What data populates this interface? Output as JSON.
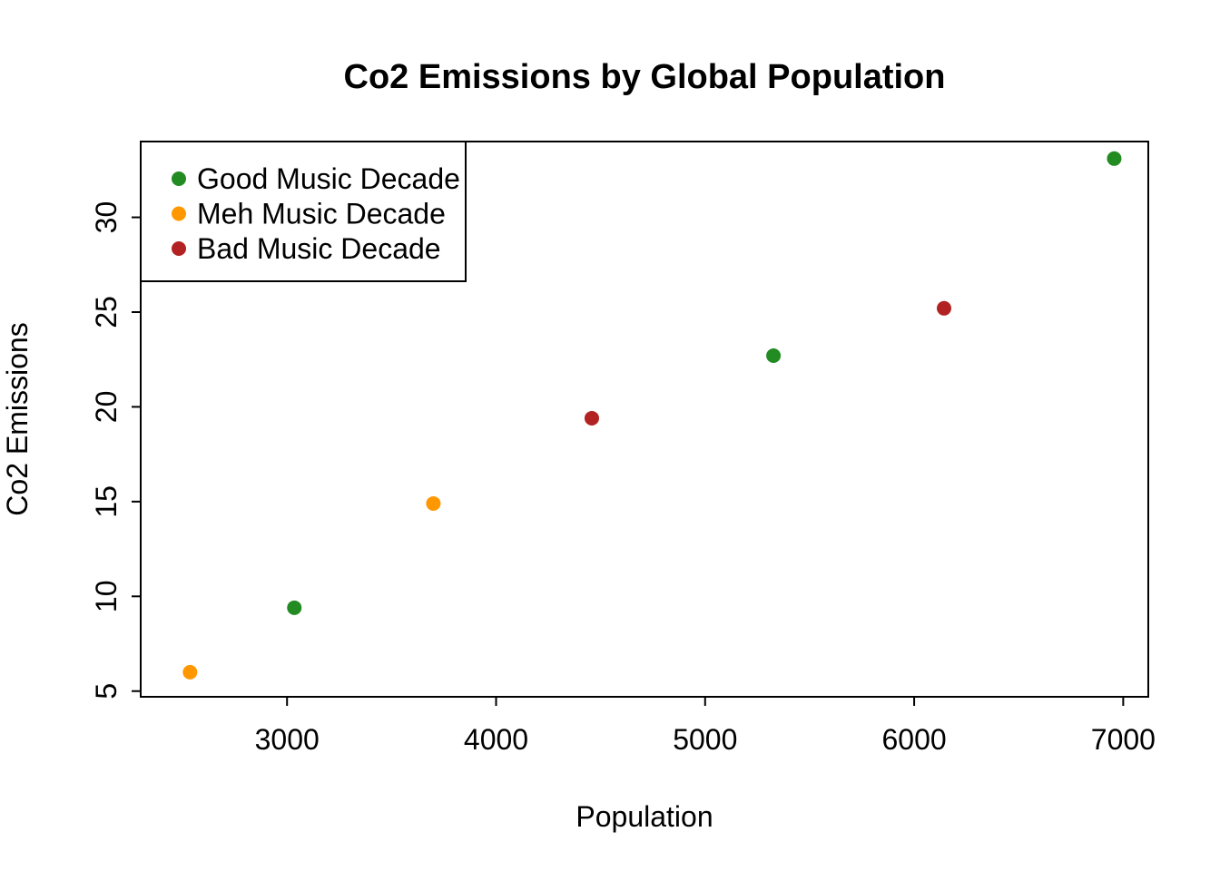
{
  "chart_data": {
    "type": "scatter",
    "title": "Co2 Emissions by Global Population",
    "xlabel": "Population",
    "ylabel": "Co2 Emissions",
    "xlim": [
      2300,
      7120
    ],
    "ylim": [
      4.7,
      34.0
    ],
    "x_ticks": [
      3000,
      4000,
      5000,
      6000,
      7000
    ],
    "y_ticks": [
      5,
      10,
      15,
      20,
      25,
      30
    ],
    "grid": false,
    "legend_position": "top-left",
    "point_radius": 8,
    "series": [
      {
        "name": "Good Music Decade",
        "color": "#228B22",
        "points": [
          {
            "x": 3035,
            "y": 9.4
          },
          {
            "x": 5327,
            "y": 22.7
          },
          {
            "x": 6957,
            "y": 33.1
          }
        ]
      },
      {
        "name": "Meh Music Decade",
        "color": "#FF9800",
        "points": [
          {
            "x": 2536,
            "y": 6.0
          },
          {
            "x": 3700,
            "y": 14.9
          }
        ]
      },
      {
        "name": "Bad Music Decade",
        "color": "#B22222",
        "points": [
          {
            "x": 4458,
            "y": 19.4
          },
          {
            "x": 6143,
            "y": 25.2
          }
        ]
      }
    ]
  }
}
